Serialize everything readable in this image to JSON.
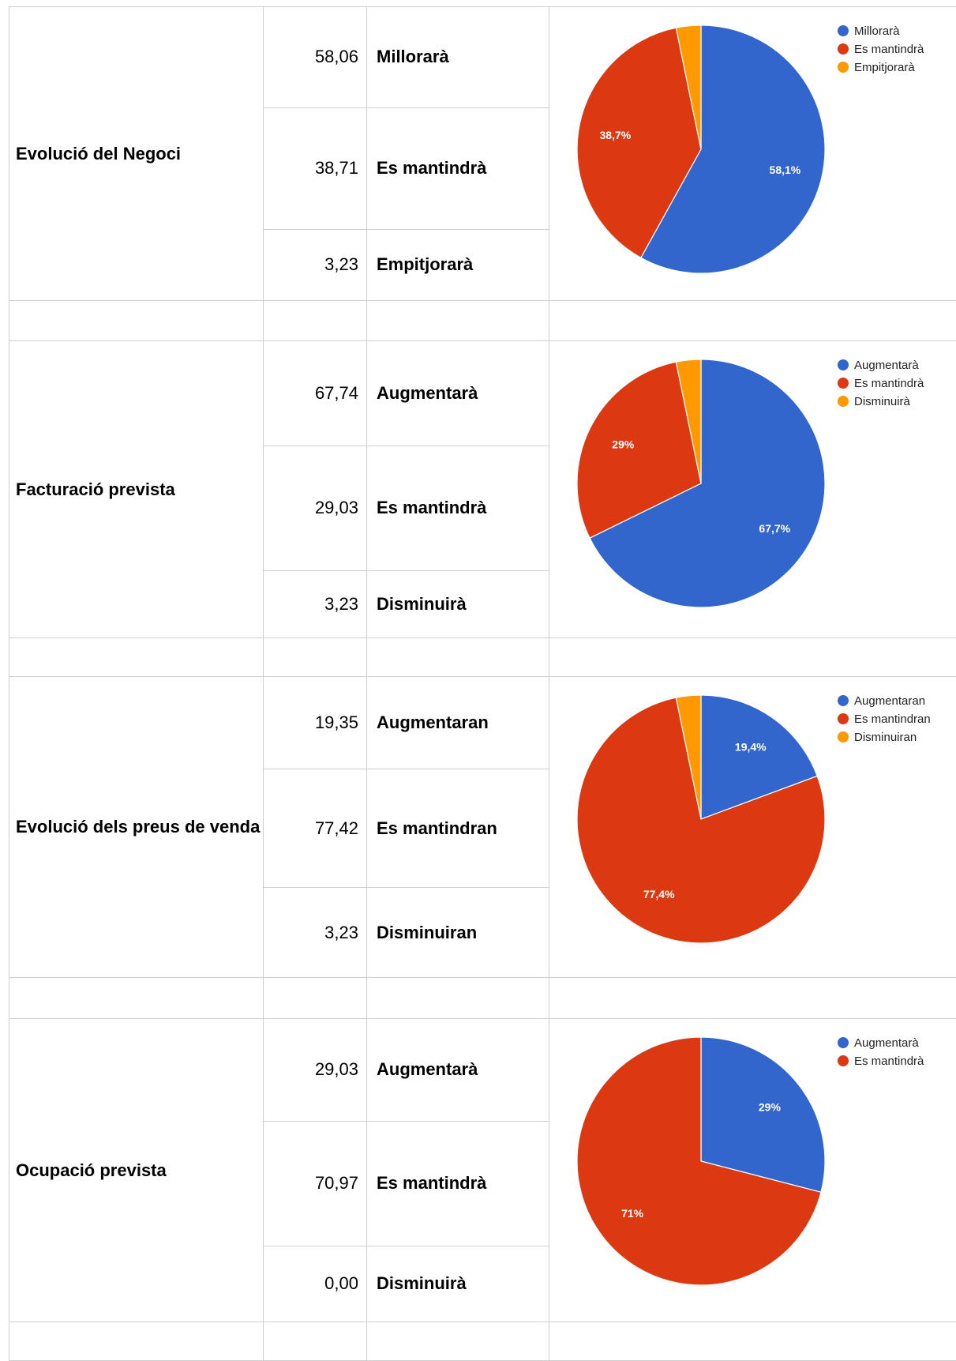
{
  "table": {
    "sections": [
      {
        "label": "Evolució del Negoci",
        "rows": [
          [
            "58,06",
            "Millorarà"
          ],
          [
            "38,71",
            "Es mantindrà"
          ],
          [
            "3,23",
            "Empitjorarà"
          ]
        ]
      },
      {
        "label": "Facturació prevista",
        "rows": [
          [
            "67,74",
            "Augmentarà"
          ],
          [
            "29,03",
            "Es mantindrà"
          ],
          [
            "3,23",
            "Disminuirà"
          ]
        ]
      },
      {
        "label": "Evolució dels preus de venda",
        "rows": [
          [
            "19,35",
            "Augmentaran"
          ],
          [
            "77,42",
            "Es mantindran"
          ],
          [
            "3,23",
            "Disminuiran"
          ]
        ]
      },
      {
        "label": "Ocupació prevista",
        "rows": [
          [
            "29,03",
            "Augmentarà"
          ],
          [
            "70,97",
            "Es mantindrà"
          ],
          [
            "0,00",
            "Disminuirà"
          ]
        ]
      }
    ]
  },
  "chart_data": [
    {
      "type": "pie",
      "categories": [
        "Millorarà",
        "Es mantindrà",
        "Empitjorarà"
      ],
      "values": [
        58.06,
        38.71,
        3.23
      ],
      "value_labels": [
        "58,1%",
        "38,7%",
        null
      ],
      "colors": [
        "#3366cc",
        "#dc3912",
        "#ff9900"
      ]
    },
    {
      "type": "pie",
      "categories": [
        "Augmentarà",
        "Es mantindrà",
        "Disminuirà"
      ],
      "values": [
        67.74,
        29.03,
        3.23
      ],
      "value_labels": [
        "67,7%",
        "29%",
        null
      ],
      "colors": [
        "#3366cc",
        "#dc3912",
        "#ff9900"
      ]
    },
    {
      "type": "pie",
      "categories": [
        "Augmentaran",
        "Es mantindran",
        "Disminuiran"
      ],
      "values": [
        19.35,
        77.42,
        3.23
      ],
      "value_labels": [
        "19,4%",
        "77,4%",
        null
      ],
      "colors": [
        "#3366cc",
        "#dc3912",
        "#ff9900"
      ]
    },
    {
      "type": "pie",
      "categories": [
        "Augmentarà",
        "Es mantindrà"
      ],
      "values": [
        29.03,
        70.97
      ],
      "value_labels": [
        "29%",
        "71%"
      ],
      "colors": [
        "#3366cc",
        "#dc3912"
      ]
    }
  ]
}
